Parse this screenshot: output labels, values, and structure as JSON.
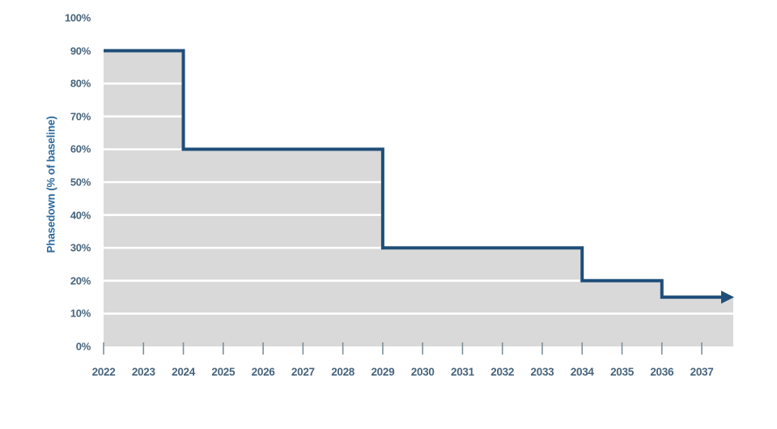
{
  "chart_data": {
    "type": "area",
    "subtype": "step",
    "title": "",
    "xlabel": "",
    "ylabel": "Phasedown (% of baseline)",
    "ylim": [
      0,
      100
    ],
    "y_ticks": [
      "0%",
      "10%",
      "20%",
      "30%",
      "40%",
      "50%",
      "60%",
      "70%",
      "80%",
      "90%",
      "100%"
    ],
    "x_ticks": [
      "2022",
      "2023",
      "2024",
      "2025",
      "2026",
      "2027",
      "2028",
      "2029",
      "2030",
      "2031",
      "2032",
      "2033",
      "2034",
      "2035",
      "2036",
      "2037"
    ],
    "series": [
      {
        "from_year": 2022,
        "to_year": 2024,
        "value_pct": 90
      },
      {
        "from_year": 2024,
        "to_year": 2029,
        "value_pct": 60
      },
      {
        "from_year": 2029,
        "to_year": 2034,
        "value_pct": 30
      },
      {
        "from_year": 2034,
        "to_year": 2036,
        "value_pct": 20
      },
      {
        "from_year": 2036,
        "to_year": null,
        "value_pct": 15
      }
    ],
    "arrow": true,
    "grid": "horizontal white lines on gray fill",
    "legend": "none",
    "colors": {
      "step_line": "#1f4e79",
      "area_fill": "#d9d9d9",
      "gridline": "#ffffff",
      "y_tick_label": "#47647c",
      "x_tick_label": "#47647c",
      "axis_title": "#2d6ba0",
      "tick_mark": "#7d8f9d",
      "background": "#ffffff"
    }
  }
}
